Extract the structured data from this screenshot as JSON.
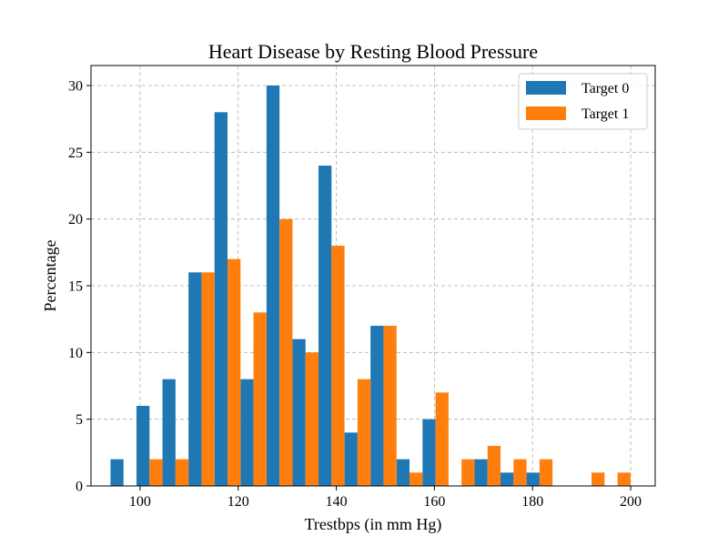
{
  "chart_data": {
    "type": "bar",
    "title": "Heart Disease by Resting Blood Pressure",
    "xlabel": "Trestbps (in mm Hg)",
    "ylabel": "Percentage",
    "xlim": [
      90,
      205
    ],
    "ylim": [
      0,
      31.5
    ],
    "xticks": [
      100,
      120,
      140,
      160,
      180,
      200
    ],
    "yticks": [
      0,
      5,
      10,
      15,
      20,
      25,
      30
    ],
    "grid": true,
    "legend_position": "top-right",
    "bin_width": 5.3,
    "series": [
      {
        "name": "Target 0",
        "color": "#1f77b4",
        "x": [
          95.3,
          100.6,
          105.9,
          111.2,
          116.5,
          121.8,
          127.1,
          132.4,
          137.7,
          143.0,
          148.3,
          153.6,
          158.9,
          164.2,
          169.5,
          174.8,
          180.1,
          185.4,
          190.7,
          196.0
        ],
        "values": [
          2,
          6,
          8,
          16,
          28,
          8,
          30,
          11,
          24,
          4,
          12,
          2,
          5,
          0,
          2,
          1,
          1,
          0,
          0,
          0
        ]
      },
      {
        "name": "Target 1",
        "color": "#ff7f0e",
        "x": [
          97.95,
          103.25,
          108.55,
          113.85,
          119.15,
          124.45,
          129.75,
          135.05,
          140.35,
          145.65,
          150.95,
          156.25,
          161.55,
          166.85,
          172.15,
          177.45,
          182.75,
          188.05,
          193.35,
          198.65
        ],
        "values": [
          0,
          2,
          2,
          16,
          17,
          13,
          20,
          10,
          18,
          8,
          12,
          1,
          7,
          2,
          3,
          2,
          2,
          0,
          1,
          1
        ]
      }
    ]
  }
}
